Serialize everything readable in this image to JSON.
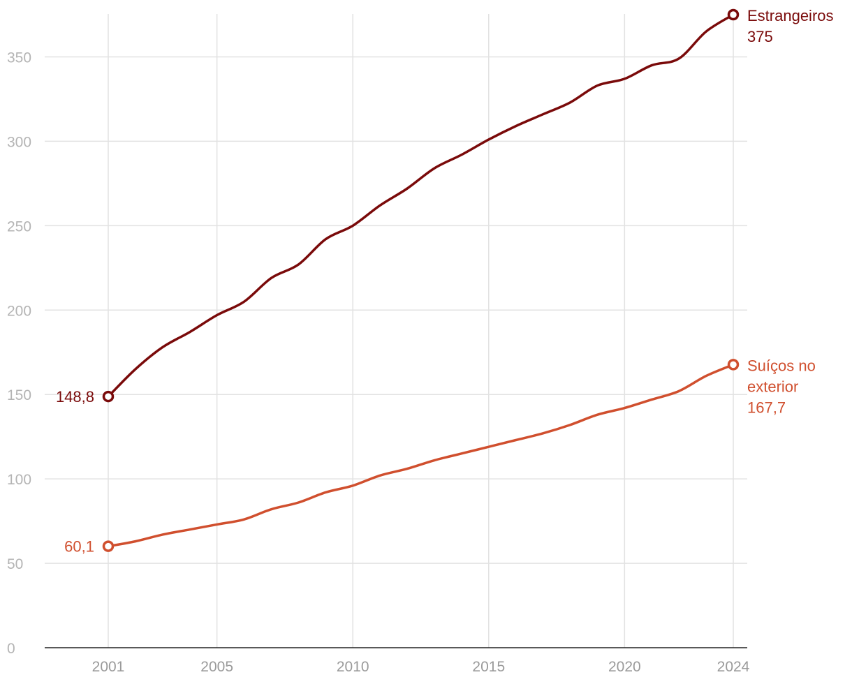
{
  "chart_data": {
    "type": "line",
    "title": "",
    "xlabel": "",
    "ylabel": "",
    "xlim": [
      2001,
      2024
    ],
    "ylim": [
      0,
      375
    ],
    "y_ticks": [
      "0",
      "50",
      "100",
      "150",
      "200",
      "250",
      "300",
      "350"
    ],
    "y_tick_values": [
      0,
      50,
      100,
      150,
      200,
      250,
      300,
      350
    ],
    "x_ticks": [
      "2001",
      "2005",
      "2010",
      "2015",
      "2020",
      "2024"
    ],
    "x_tick_values": [
      2001,
      2005,
      2010,
      2015,
      2020,
      2024
    ],
    "grid": true,
    "legend": "direct labels at line ends",
    "x": [
      2001,
      2002,
      2003,
      2004,
      2005,
      2006,
      2007,
      2008,
      2009,
      2010,
      2011,
      2012,
      2013,
      2014,
      2015,
      2016,
      2017,
      2018,
      2019,
      2020,
      2021,
      2022,
      2023,
      2024
    ],
    "series": [
      {
        "name": "Estrangeiros",
        "color": "#7a0a0a",
        "values": [
          148.8,
          165,
          178,
          187,
          197,
          205,
          219,
          227,
          242,
          250,
          262,
          272,
          284,
          292,
          301,
          309,
          316,
          323,
          333,
          337,
          345,
          349,
          365,
          375
        ],
        "start_label": "148,8",
        "end_label": "375"
      },
      {
        "name": "Suíços no exterior",
        "name_lines": [
          "Suíços no",
          "exterior"
        ],
        "color": "#d04f2e",
        "values": [
          60.1,
          63,
          67,
          70,
          73,
          76,
          82,
          86,
          92,
          96,
          102,
          106,
          111,
          115,
          119,
          123,
          127,
          132,
          138,
          142,
          147,
          152,
          161,
          167.7
        ],
        "start_label": "60,1",
        "end_label": "167,7"
      }
    ]
  }
}
